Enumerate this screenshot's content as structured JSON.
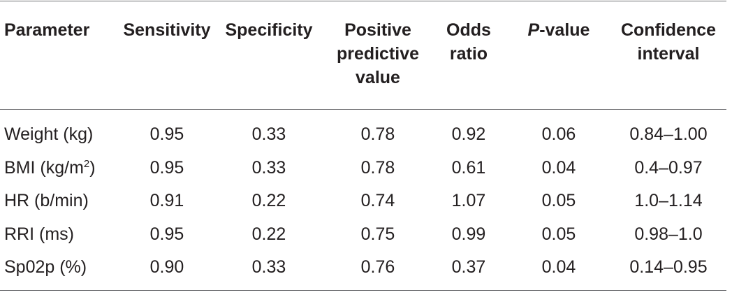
{
  "table": {
    "headers": {
      "parameter": "Parameter",
      "sensitivity": "Sensitivity",
      "specificity": "Specificity",
      "ppv_line1": "Positive",
      "ppv_line2": "predictive",
      "ppv_line3": "value",
      "odds_line1": "Odds",
      "odds_line2": "ratio",
      "pvalue_p": "P",
      "pvalue_rest": "-value",
      "ci_line1": "Confidence",
      "ci_line2": "interval"
    },
    "rows": [
      {
        "parameter": "Weight (kg)",
        "sensitivity": "0.95",
        "specificity": "0.33",
        "ppv": "0.78",
        "odds_ratio": "0.92",
        "p_value": "0.06",
        "confidence_interval": "0.84–1.00"
      },
      {
        "parameter_main": "BMI (kg/m",
        "parameter_sup": "2",
        "parameter_close": ")",
        "sensitivity": "0.95",
        "specificity": "0.33",
        "ppv": "0.78",
        "odds_ratio": "0.61",
        "p_value": "0.04",
        "confidence_interval": "0.4–0.97"
      },
      {
        "parameter": "HR (b/min)",
        "sensitivity": "0.91",
        "specificity": "0.22",
        "ppv": "0.74",
        "odds_ratio": "1.07",
        "p_value": "0.05",
        "confidence_interval": "1.0–1.14"
      },
      {
        "parameter": "RRI (ms)",
        "sensitivity": "0.95",
        "specificity": "0.22",
        "ppv": "0.75",
        "odds_ratio": "0.99",
        "p_value": "0.05",
        "confidence_interval": "0.98–1.0"
      },
      {
        "parameter": "Sp02p (%)",
        "sensitivity": "0.90",
        "specificity": "0.33",
        "ppv": "0.76",
        "odds_ratio": "0.37",
        "p_value": "0.04",
        "confidence_interval": "0.14–0.95"
      }
    ]
  },
  "colors": {
    "text": "#231f20",
    "rule": "#6d6e71",
    "background": "#ffffff"
  }
}
